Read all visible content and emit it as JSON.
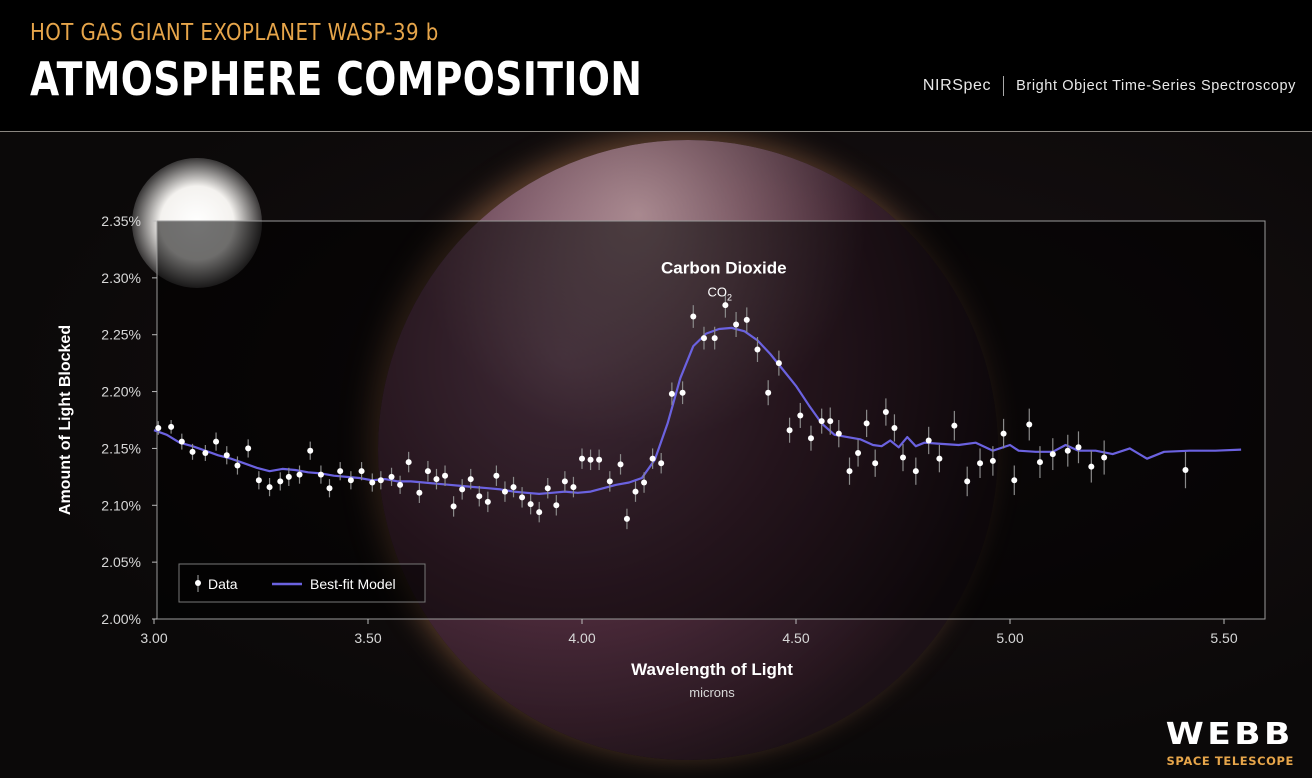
{
  "header": {
    "supertitle": "HOT GAS GIANT EXOPLANET WASP-39 b",
    "title": "ATMOSPHERE COMPOSITION",
    "instrument": "NIRSpec",
    "mode": "Bright Object Time-Series Spectroscopy"
  },
  "logo": {
    "name": "WEBB",
    "subtitle": "SPACE TELESCOPE"
  },
  "colors": {
    "accent": "#e6a54a",
    "model": "#6b62e0",
    "data": "#ffffff",
    "header_bg": "#000000"
  },
  "chart_data": {
    "type": "scatter",
    "xlabel": "Wavelength of Light",
    "xunit": "microns",
    "ylabel": "Amount of Light Blocked",
    "xlim": [
      3.0,
      5.6
    ],
    "ylim": [
      2.0,
      2.35
    ],
    "xticks": [
      3.0,
      3.5,
      4.0,
      4.5,
      5.0,
      5.5
    ],
    "xtick_labels": [
      "3.00",
      "3.50",
      "4.00",
      "4.50",
      "5.00",
      "5.50"
    ],
    "yticks": [
      2.0,
      2.05,
      2.1,
      2.15,
      2.2,
      2.25,
      2.3,
      2.35
    ],
    "ytick_labels": [
      "2.00%",
      "2.05%",
      "2.10%",
      "2.15%",
      "2.20%",
      "2.25%",
      "2.30%",
      "2.35%"
    ],
    "annotation": {
      "name": "Carbon Dioxide",
      "formula": "CO",
      "subscript": "2",
      "x": 4.35,
      "y": 2.31
    },
    "legend": {
      "placement": "bottom-left",
      "data_label": "Data",
      "model_label": "Best-fit Model"
    },
    "series": [
      {
        "name": "Data",
        "kind": "points_with_errorbars",
        "points": [
          [
            3.01,
            2.168,
            0.006
          ],
          [
            3.04,
            2.169,
            0.006
          ],
          [
            3.065,
            2.156,
            0.007
          ],
          [
            3.09,
            2.147,
            0.007
          ],
          [
            3.12,
            2.146,
            0.007
          ],
          [
            3.145,
            2.156,
            0.008
          ],
          [
            3.17,
            2.144,
            0.008
          ],
          [
            3.195,
            2.135,
            0.008
          ],
          [
            3.22,
            2.15,
            0.008
          ],
          [
            3.245,
            2.122,
            0.008
          ],
          [
            3.27,
            2.116,
            0.008
          ],
          [
            3.295,
            2.121,
            0.008
          ],
          [
            3.315,
            2.125,
            0.008
          ],
          [
            3.34,
            2.127,
            0.008
          ],
          [
            3.365,
            2.148,
            0.008
          ],
          [
            3.39,
            2.127,
            0.008
          ],
          [
            3.41,
            2.115,
            0.008
          ],
          [
            3.435,
            2.13,
            0.008
          ],
          [
            3.46,
            2.122,
            0.008
          ],
          [
            3.485,
            2.13,
            0.008
          ],
          [
            3.51,
            2.12,
            0.008
          ],
          [
            3.53,
            2.122,
            0.008
          ],
          [
            3.555,
            2.125,
            0.008
          ],
          [
            3.575,
            2.118,
            0.008
          ],
          [
            3.595,
            2.138,
            0.009
          ],
          [
            3.62,
            2.111,
            0.009
          ],
          [
            3.64,
            2.13,
            0.009
          ],
          [
            3.66,
            2.123,
            0.009
          ],
          [
            3.68,
            2.126,
            0.009
          ],
          [
            3.7,
            2.099,
            0.009
          ],
          [
            3.72,
            2.114,
            0.009
          ],
          [
            3.74,
            2.123,
            0.009
          ],
          [
            3.76,
            2.108,
            0.009
          ],
          [
            3.78,
            2.103,
            0.009
          ],
          [
            3.8,
            2.126,
            0.009
          ],
          [
            3.82,
            2.112,
            0.009
          ],
          [
            3.84,
            2.116,
            0.009
          ],
          [
            3.86,
            2.107,
            0.009
          ],
          [
            3.88,
            2.101,
            0.009
          ],
          [
            3.9,
            2.094,
            0.009
          ],
          [
            3.92,
            2.115,
            0.009
          ],
          [
            3.94,
            2.1,
            0.009
          ],
          [
            3.96,
            2.121,
            0.009
          ],
          [
            3.98,
            2.116,
            0.009
          ],
          [
            4.0,
            2.141,
            0.009
          ],
          [
            4.02,
            2.14,
            0.009
          ],
          [
            4.04,
            2.14,
            0.009
          ],
          [
            4.065,
            2.121,
            0.009
          ],
          [
            4.09,
            2.136,
            0.009
          ],
          [
            4.105,
            2.088,
            0.009
          ],
          [
            4.125,
            2.112,
            0.009
          ],
          [
            4.145,
            2.12,
            0.009
          ],
          [
            4.165,
            2.141,
            0.009
          ],
          [
            4.185,
            2.137,
            0.009
          ],
          [
            4.21,
            2.198,
            0.01
          ],
          [
            4.235,
            2.199,
            0.01
          ],
          [
            4.26,
            2.266,
            0.01
          ],
          [
            4.285,
            2.247,
            0.01
          ],
          [
            4.31,
            2.247,
            0.01
          ],
          [
            4.335,
            2.276,
            0.011
          ],
          [
            4.36,
            2.259,
            0.011
          ],
          [
            4.385,
            2.263,
            0.011
          ],
          [
            4.41,
            2.237,
            0.011
          ],
          [
            4.435,
            2.199,
            0.011
          ],
          [
            4.46,
            2.225,
            0.011
          ],
          [
            4.485,
            2.166,
            0.011
          ],
          [
            4.51,
            2.179,
            0.011
          ],
          [
            4.535,
            2.159,
            0.011
          ],
          [
            4.56,
            2.174,
            0.011
          ],
          [
            4.58,
            2.174,
            0.012
          ],
          [
            4.6,
            2.163,
            0.012
          ],
          [
            4.625,
            2.13,
            0.012
          ],
          [
            4.645,
            2.146,
            0.012
          ],
          [
            4.665,
            2.172,
            0.012
          ],
          [
            4.685,
            2.137,
            0.012
          ],
          [
            4.71,
            2.182,
            0.012
          ],
          [
            4.73,
            2.168,
            0.012
          ],
          [
            4.75,
            2.142,
            0.012
          ],
          [
            4.78,
            2.13,
            0.012
          ],
          [
            4.81,
            2.157,
            0.012
          ],
          [
            4.835,
            2.141,
            0.012
          ],
          [
            4.87,
            2.17,
            0.013
          ],
          [
            4.9,
            2.121,
            0.013
          ],
          [
            4.93,
            2.137,
            0.013
          ],
          [
            4.96,
            2.139,
            0.013
          ],
          [
            4.985,
            2.163,
            0.013
          ],
          [
            5.01,
            2.122,
            0.013
          ],
          [
            5.045,
            2.171,
            0.014
          ],
          [
            5.07,
            2.138,
            0.014
          ],
          [
            5.1,
            2.145,
            0.014
          ],
          [
            5.135,
            2.148,
            0.014
          ],
          [
            5.16,
            2.151,
            0.014
          ],
          [
            5.19,
            2.134,
            0.014
          ],
          [
            5.22,
            2.142,
            0.015
          ],
          [
            5.41,
            2.131,
            0.016
          ]
        ]
      },
      {
        "name": "Best-fit Model",
        "kind": "line",
        "x": [
          3.0,
          3.03,
          3.06,
          3.09,
          3.12,
          3.15,
          3.18,
          3.21,
          3.24,
          3.27,
          3.3,
          3.33,
          3.36,
          3.39,
          3.42,
          3.45,
          3.48,
          3.51,
          3.54,
          3.57,
          3.6,
          3.63,
          3.66,
          3.69,
          3.72,
          3.75,
          3.78,
          3.81,
          3.84,
          3.87,
          3.9,
          3.93,
          3.96,
          3.99,
          4.02,
          4.05,
          4.08,
          4.11,
          4.14,
          4.17,
          4.2,
          4.23,
          4.26,
          4.29,
          4.32,
          4.35,
          4.38,
          4.41,
          4.44,
          4.47,
          4.5,
          4.53,
          4.56,
          4.59,
          4.62,
          4.65,
          4.68,
          4.7,
          4.72,
          4.74,
          4.76,
          4.78,
          4.8,
          4.84,
          4.88,
          4.92,
          4.96,
          5.0,
          5.02,
          5.06,
          5.1,
          5.13,
          5.16,
          5.2,
          5.24,
          5.28,
          5.32,
          5.36,
          5.42,
          5.48,
          5.54
        ],
        "y": [
          2.166,
          2.162,
          2.155,
          2.152,
          2.148,
          2.144,
          2.141,
          2.137,
          2.133,
          2.13,
          2.132,
          2.131,
          2.129,
          2.128,
          2.126,
          2.125,
          2.124,
          2.122,
          2.123,
          2.121,
          2.121,
          2.12,
          2.119,
          2.118,
          2.117,
          2.116,
          2.115,
          2.114,
          2.112,
          2.111,
          2.11,
          2.111,
          2.112,
          2.111,
          2.112,
          2.115,
          2.118,
          2.12,
          2.124,
          2.14,
          2.172,
          2.212,
          2.24,
          2.251,
          2.255,
          2.256,
          2.253,
          2.245,
          2.233,
          2.219,
          2.205,
          2.188,
          2.172,
          2.162,
          2.16,
          2.158,
          2.153,
          2.152,
          2.157,
          2.151,
          2.16,
          2.152,
          2.155,
          2.154,
          2.153,
          2.155,
          2.148,
          2.153,
          2.148,
          2.147,
          2.147,
          2.153,
          2.148,
          2.148,
          2.145,
          2.15,
          2.141,
          2.147,
          2.148,
          2.148,
          2.149
        ]
      }
    ]
  }
}
